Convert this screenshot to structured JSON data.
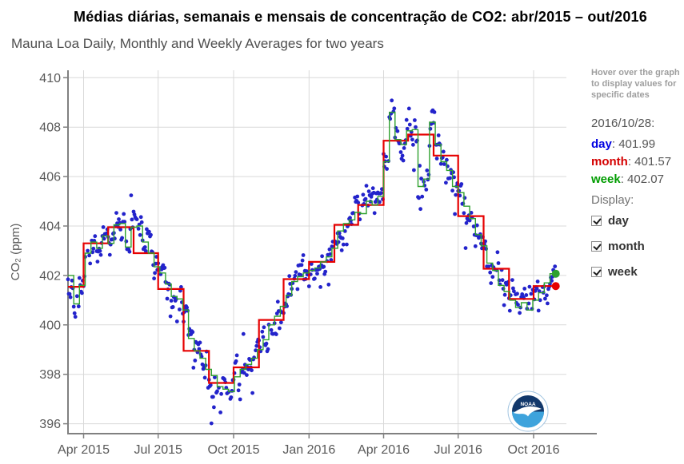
{
  "page": {
    "title": "Médias diárias, semanais e mensais de concentração de CO2: abr/2015 – out/2016",
    "subtitle": "Mauna Loa Daily, Monthly and Weekly Averages for two years"
  },
  "sidebar": {
    "hover_note": "Hover over the graph to display values for specific dates",
    "readout": {
      "date": "2016/10/28:",
      "rows": [
        {
          "key": "day",
          "sep": ": ",
          "value": "401.99",
          "color": "#0000e1"
        },
        {
          "key": "month",
          "sep": ": ",
          "value": "401.57",
          "color": "#d40000"
        },
        {
          "key": "week",
          "sep": ": ",
          "value": "402.07",
          "color": "#009c00"
        }
      ]
    },
    "display": {
      "label": "Display:",
      "options": [
        {
          "label": "day",
          "checked": true
        },
        {
          "label": "month",
          "checked": true
        },
        {
          "label": "week",
          "checked": true
        }
      ]
    }
  },
  "chart_data": {
    "type": "scatter+step",
    "title": "Mauna Loa Daily, Monthly and Weekly Averages for two years",
    "ylabel": "CO₂ (ppm)",
    "ylim": [
      395.6,
      410.3
    ],
    "yticks": [
      396,
      398,
      400,
      402,
      404,
      406,
      408,
      410
    ],
    "grid": true,
    "x_unit_note": "days since left edge of plot (mid-March 2015); last data point 2016/10/28",
    "x_domain_days": [
      0,
      608
    ],
    "last_data_day": 595,
    "x_ticks": [
      {
        "day": 19,
        "label": "Apr 2015"
      },
      {
        "day": 110,
        "label": "Jul 2015"
      },
      {
        "day": 202,
        "label": "Oct 2015"
      },
      {
        "day": 294,
        "label": "Jan 2016"
      },
      {
        "day": 385,
        "label": "Apr 2016"
      },
      {
        "day": 476,
        "label": "Jul 2016"
      },
      {
        "day": 568,
        "label": "Oct 2016"
      }
    ],
    "watermark_text": "NOAA",
    "series": {
      "day": {
        "label": "day",
        "style": "scatter",
        "color": "#2323cb",
        "marker_radius": 2.4,
        "end_date": "2016/10/28",
        "end_value": 401.99,
        "jitter_sigma": 0.4,
        "missing_rate": 0.12,
        "seed": 20161028
      },
      "month": {
        "label": "month",
        "style": "step",
        "color": "#e60000",
        "line_width": 2.2,
        "end_value": 401.57,
        "months": [
          "Mar 2015",
          "Apr 2015",
          "May 2015",
          "Jun 2015",
          "Jul 2015",
          "Aug 2015",
          "Sep 2015",
          "Oct 2015",
          "Nov 2015",
          "Dec 2015",
          "Jan 2016",
          "Feb 2016",
          "Mar 2016",
          "Apr 2016",
          "May 2016",
          "Jun 2016",
          "Jul 2016",
          "Aug 2016",
          "Sep 2016",
          "Oct 2016"
        ],
        "start_days": [
          0,
          19,
          49,
          80,
          110,
          141,
          172,
          202,
          233,
          263,
          294,
          325,
          354,
          385,
          415,
          446,
          476,
          507,
          538,
          568
        ],
        "values": [
          401.54,
          403.3,
          403.95,
          402.9,
          401.45,
          398.95,
          397.65,
          398.28,
          400.2,
          401.85,
          402.55,
          404.05,
          404.85,
          407.45,
          407.7,
          406.85,
          404.4,
          402.27,
          401.05,
          401.57
        ]
      },
      "week": {
        "label": "week",
        "style": "step",
        "color": "#2fa12f",
        "line_width": 1.4,
        "period_days": 7,
        "start_day": 0,
        "end_value": 402.07,
        "values": [
          402.0,
          400.85,
          401.6,
          402.9,
          403.35,
          403.1,
          403.6,
          403.3,
          404.05,
          404.1,
          403.15,
          403.95,
          404.0,
          403.35,
          402.9,
          402.35,
          402.1,
          401.65,
          401.15,
          401.05,
          400.6,
          399.45,
          398.95,
          398.65,
          398.2,
          397.95,
          397.5,
          397.4,
          397.3,
          397.9,
          398.2,
          398.4,
          398.65,
          399.0,
          399.4,
          400.0,
          400.35,
          400.75,
          401.2,
          401.75,
          401.95,
          402.1,
          402.2,
          402.3,
          402.55,
          402.75,
          403.1,
          403.8,
          404.1,
          404.25,
          404.55,
          404.5,
          405.0,
          404.85,
          405.2,
          406.6,
          408.6,
          407.5,
          407.3,
          407.85,
          407.9,
          405.6,
          405.9,
          408.2,
          407.3,
          406.6,
          406.25,
          405.6,
          405.35,
          404.8,
          404.3,
          403.65,
          403.2,
          402.5,
          402.2,
          401.6,
          401.35,
          401.0,
          400.7,
          400.9,
          400.6,
          401.0,
          401.3,
          401.7,
          402.07
        ]
      }
    }
  }
}
